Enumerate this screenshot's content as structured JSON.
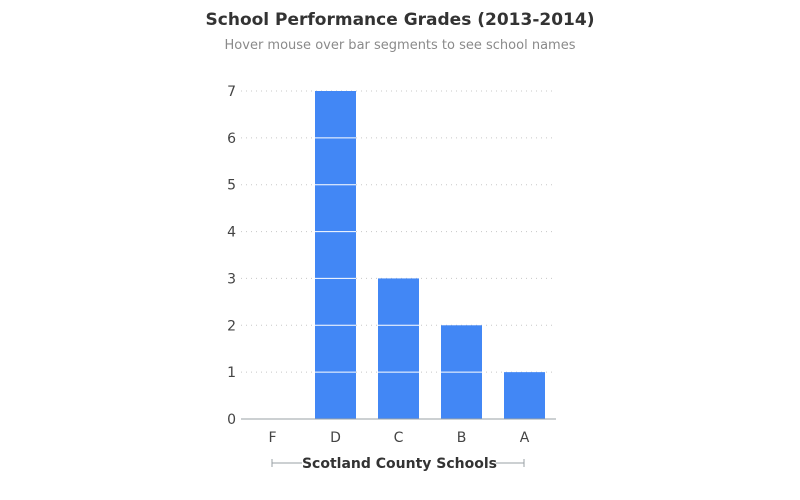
{
  "title": "School Performance Grades (2013-2014)",
  "subtitle": "Hover mouse over bar segments to see school names",
  "colors": {
    "bar": "#4287f5",
    "segment_divider": "#ffffff",
    "grid": "#c8c8c8",
    "axis": "#9aa0a6",
    "tick_label": "#444444",
    "title": "#333333",
    "subtitle": "#8a8a8a"
  },
  "chart_data": {
    "type": "bar",
    "stacked_unit_segments": true,
    "categories": [
      "F",
      "D",
      "C",
      "B",
      "A"
    ],
    "values": [
      0,
      7,
      3,
      2,
      1
    ],
    "ylim": [
      0,
      7
    ],
    "yticks": [
      0,
      1,
      2,
      3,
      4,
      5,
      6,
      7
    ],
    "grid": true,
    "grid_style": "dotted",
    "xlabel": "Scotland County Schools",
    "ylabel": "",
    "legend": "none"
  }
}
